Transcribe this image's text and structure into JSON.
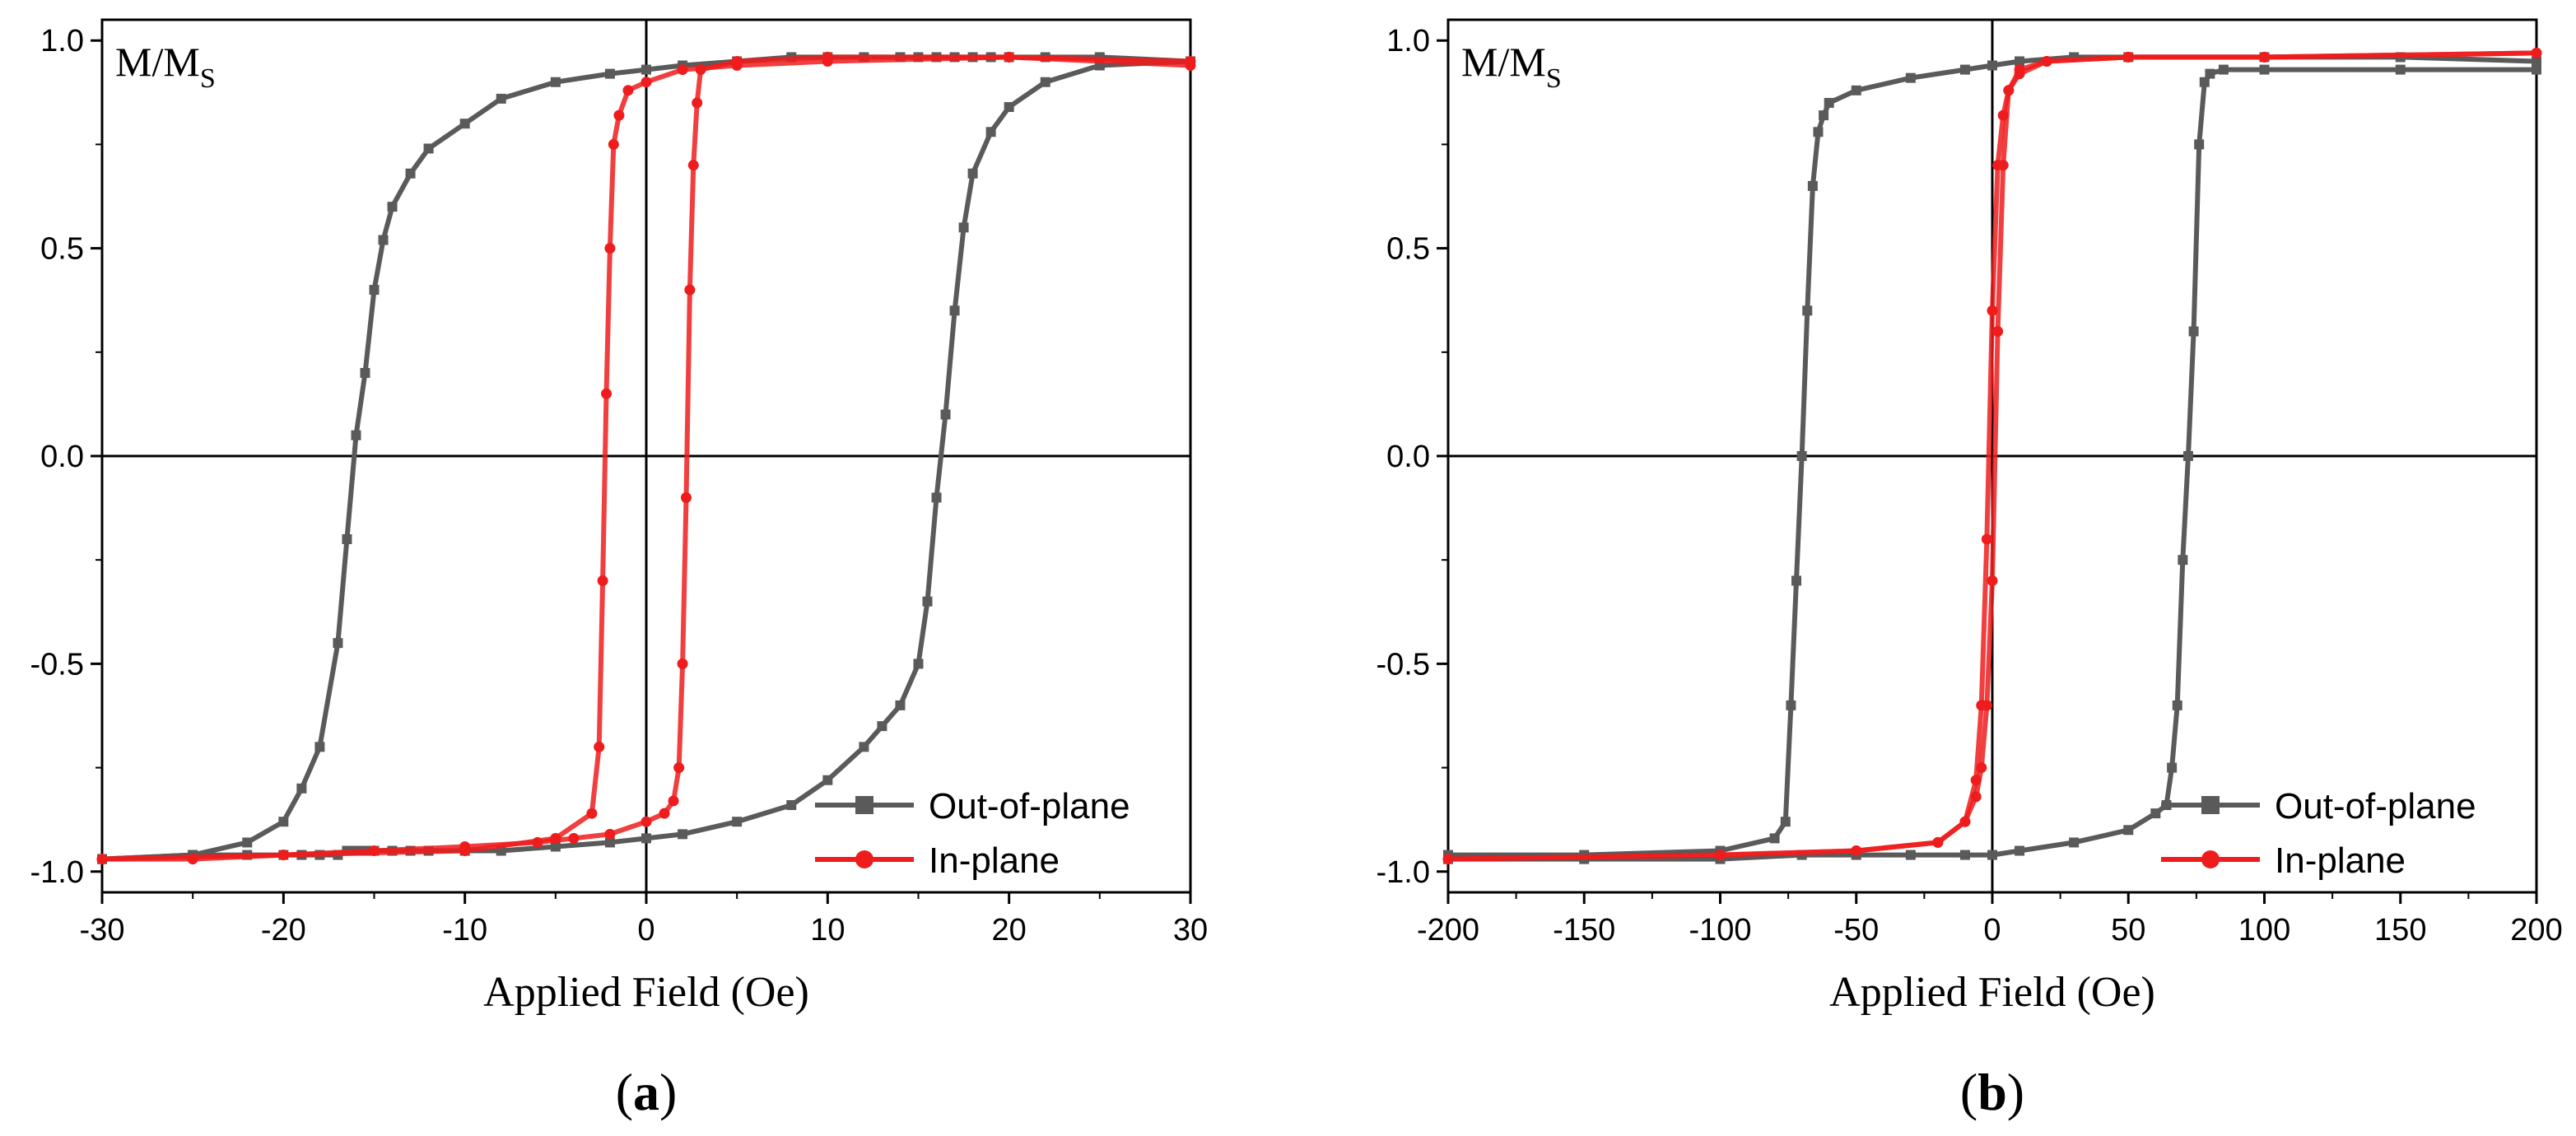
{
  "chart_data": [
    {
      "type": "line",
      "panel_label": "a",
      "xlabel": "Applied Field (Oe)",
      "ylabel_main": "M/M",
      "ylabel_sub": "S",
      "xlim": [
        -30,
        30
      ],
      "ylim": [
        -1.05,
        1.05
      ],
      "xticks": [
        -30,
        -20,
        -10,
        0,
        10,
        20,
        30
      ],
      "xtick_labels": [
        "-30",
        "-20",
        "-10",
        "0",
        "10",
        "20",
        "30"
      ],
      "yticks": [
        -1.0,
        -0.5,
        0.0,
        0.5,
        1.0
      ],
      "ytick_labels": [
        "-1.0",
        "-0.5",
        "0.0",
        "0.5",
        "1.0"
      ],
      "legend_position": "bottom-right",
      "series": [
        {
          "name": "Out-of-plane",
          "color": "#5a5a5a",
          "marker": "square",
          "branches": [
            {
              "x": [
                30,
                25,
                22,
                20,
                19,
                18,
                17.5,
                17,
                16.5,
                16,
                15.5,
                15,
                14,
                13,
                12,
                10,
                8,
                5,
                2,
                0,
                -2,
                -5,
                -8,
                -10,
                -12,
                -13,
                -14,
                -15,
                -15.5,
                -16,
                -16.5,
                -17,
                -18,
                -19,
                -20,
                -22,
                -25,
                -30
              ],
              "y": [
                0.95,
                0.94,
                0.9,
                0.84,
                0.78,
                0.68,
                0.55,
                0.35,
                0.1,
                -0.1,
                -0.35,
                -0.5,
                -0.6,
                -0.65,
                -0.7,
                -0.78,
                -0.84,
                -0.88,
                -0.91,
                -0.92,
                -0.93,
                -0.94,
                -0.95,
                -0.95,
                -0.95,
                -0.95,
                -0.95,
                -0.95,
                -0.95,
                -0.95,
                -0.95,
                -0.96,
                -0.96,
                -0.96,
                -0.96,
                -0.96,
                -0.96,
                -0.97
              ]
            },
            {
              "x": [
                -30,
                -25,
                -22,
                -20,
                -19,
                -18,
                -17,
                -16.5,
                -16,
                -15.5,
                -15,
                -14.5,
                -14,
                -13,
                -12,
                -10,
                -8,
                -5,
                -2,
                0,
                2,
                5,
                8,
                10,
                12,
                14,
                15,
                16,
                17,
                18,
                19,
                20,
                22,
                25,
                30
              ],
              "y": [
                -0.97,
                -0.96,
                -0.93,
                -0.88,
                -0.8,
                -0.7,
                -0.45,
                -0.2,
                0.05,
                0.2,
                0.4,
                0.52,
                0.6,
                0.68,
                0.74,
                0.8,
                0.86,
                0.9,
                0.92,
                0.93,
                0.94,
                0.95,
                0.96,
                0.96,
                0.96,
                0.96,
                0.96,
                0.96,
                0.96,
                0.96,
                0.96,
                0.96,
                0.96,
                0.96,
                0.95
              ]
            }
          ]
        },
        {
          "name": "In-plane",
          "color": "#ee1c1c",
          "marker": "circle",
          "branches": [
            {
              "x": [
                30,
                20,
                10,
                5,
                3,
                2.8,
                2.6,
                2.4,
                2.2,
                2.0,
                1.8,
                1.5,
                1.0,
                0,
                -2,
                -4,
                -6,
                -10,
                -15,
                -20,
                -25,
                -30
              ],
              "y": [
                0.95,
                0.96,
                0.96,
                0.95,
                0.93,
                0.85,
                0.7,
                0.4,
                -0.1,
                -0.5,
                -0.75,
                -0.83,
                -0.86,
                -0.88,
                -0.91,
                -0.92,
                -0.93,
                -0.94,
                -0.95,
                -0.96,
                -0.97,
                -0.97
              ]
            },
            {
              "x": [
                -30,
                -20,
                -10,
                -5,
                -3,
                -2.6,
                -2.4,
                -2.2,
                -2.0,
                -1.8,
                -1.5,
                -1.0,
                0,
                2,
                5,
                10,
                20,
                30
              ],
              "y": [
                -0.97,
                -0.96,
                -0.95,
                -0.92,
                -0.86,
                -0.7,
                -0.3,
                0.15,
                0.5,
                0.75,
                0.82,
                0.88,
                0.9,
                0.93,
                0.94,
                0.95,
                0.96,
                0.94
              ]
            }
          ]
        }
      ]
    },
    {
      "type": "line",
      "panel_label": "b",
      "xlabel": "Applied Field (Oe)",
      "ylabel_main": "M/M",
      "ylabel_sub": "S",
      "xlim": [
        -200,
        200
      ],
      "ylim": [
        -1.05,
        1.05
      ],
      "xticks": [
        -200,
        -150,
        -100,
        -50,
        0,
        50,
        100,
        150,
        200
      ],
      "xtick_labels": [
        "-200",
        "-150",
        "-100",
        "-50",
        "0",
        "50",
        "100",
        "150",
        "200"
      ],
      "yticks": [
        -1.0,
        -0.5,
        0.0,
        0.5,
        1.0
      ],
      "ytick_labels": [
        "-1.0",
        "-0.5",
        "0.0",
        "0.5",
        "1.0"
      ],
      "legend_position": "bottom-right",
      "series": [
        {
          "name": "Out-of-plane",
          "color": "#5a5a5a",
          "marker": "square",
          "branches": [
            {
              "x": [
                200,
                150,
                100,
                85,
                80,
                78,
                76,
                74,
                72,
                70,
                68,
                66,
                64,
                60,
                50,
                30,
                10,
                0,
                -10,
                -30,
                -50,
                -70,
                -100,
                -150,
                -200
              ],
              "y": [
                0.93,
                0.93,
                0.93,
                0.93,
                0.92,
                0.9,
                0.75,
                0.3,
                0.0,
                -0.25,
                -0.6,
                -0.75,
                -0.84,
                -0.86,
                -0.9,
                -0.93,
                -0.95,
                -0.96,
                -0.96,
                -0.96,
                -0.96,
                -0.96,
                -0.97,
                -0.97,
                -0.97
              ]
            },
            {
              "x": [
                -200,
                -150,
                -100,
                -80,
                -76,
                -74,
                -72,
                -70,
                -68,
                -66,
                -64,
                -62,
                -60,
                -50,
                -30,
                -10,
                0,
                10,
                30,
                50,
                100,
                150,
                200
              ],
              "y": [
                -0.96,
                -0.96,
                -0.95,
                -0.92,
                -0.88,
                -0.6,
                -0.3,
                0.0,
                0.35,
                0.65,
                0.78,
                0.82,
                0.85,
                0.88,
                0.91,
                0.93,
                0.94,
                0.95,
                0.96,
                0.96,
                0.96,
                0.96,
                0.95
              ]
            }
          ]
        },
        {
          "name": "In-plane",
          "color": "#ee1c1c",
          "marker": "circle",
          "branches": [
            {
              "x": [
                200,
                100,
                50,
                20,
                10,
                6,
                4,
                2,
                0,
                -2,
                -4,
                -6,
                -10,
                -20,
                -50,
                -100,
                -200
              ],
              "y": [
                0.97,
                0.96,
                0.96,
                0.95,
                0.93,
                0.88,
                0.7,
                0.3,
                -0.3,
                -0.6,
                -0.75,
                -0.82,
                -0.88,
                -0.93,
                -0.95,
                -0.96,
                -0.97
              ]
            },
            {
              "x": [
                -200,
                -100,
                -50,
                -20,
                -10,
                -6,
                -4,
                -2,
                0,
                2,
                4,
                6,
                10,
                20,
                50,
                100,
                200
              ],
              "y": [
                -0.97,
                -0.96,
                -0.95,
                -0.93,
                -0.88,
                -0.78,
                -0.6,
                -0.2,
                0.35,
                0.7,
                0.82,
                0.88,
                0.92,
                0.95,
                0.96,
                0.96,
                0.97
              ]
            }
          ]
        }
      ]
    }
  ]
}
